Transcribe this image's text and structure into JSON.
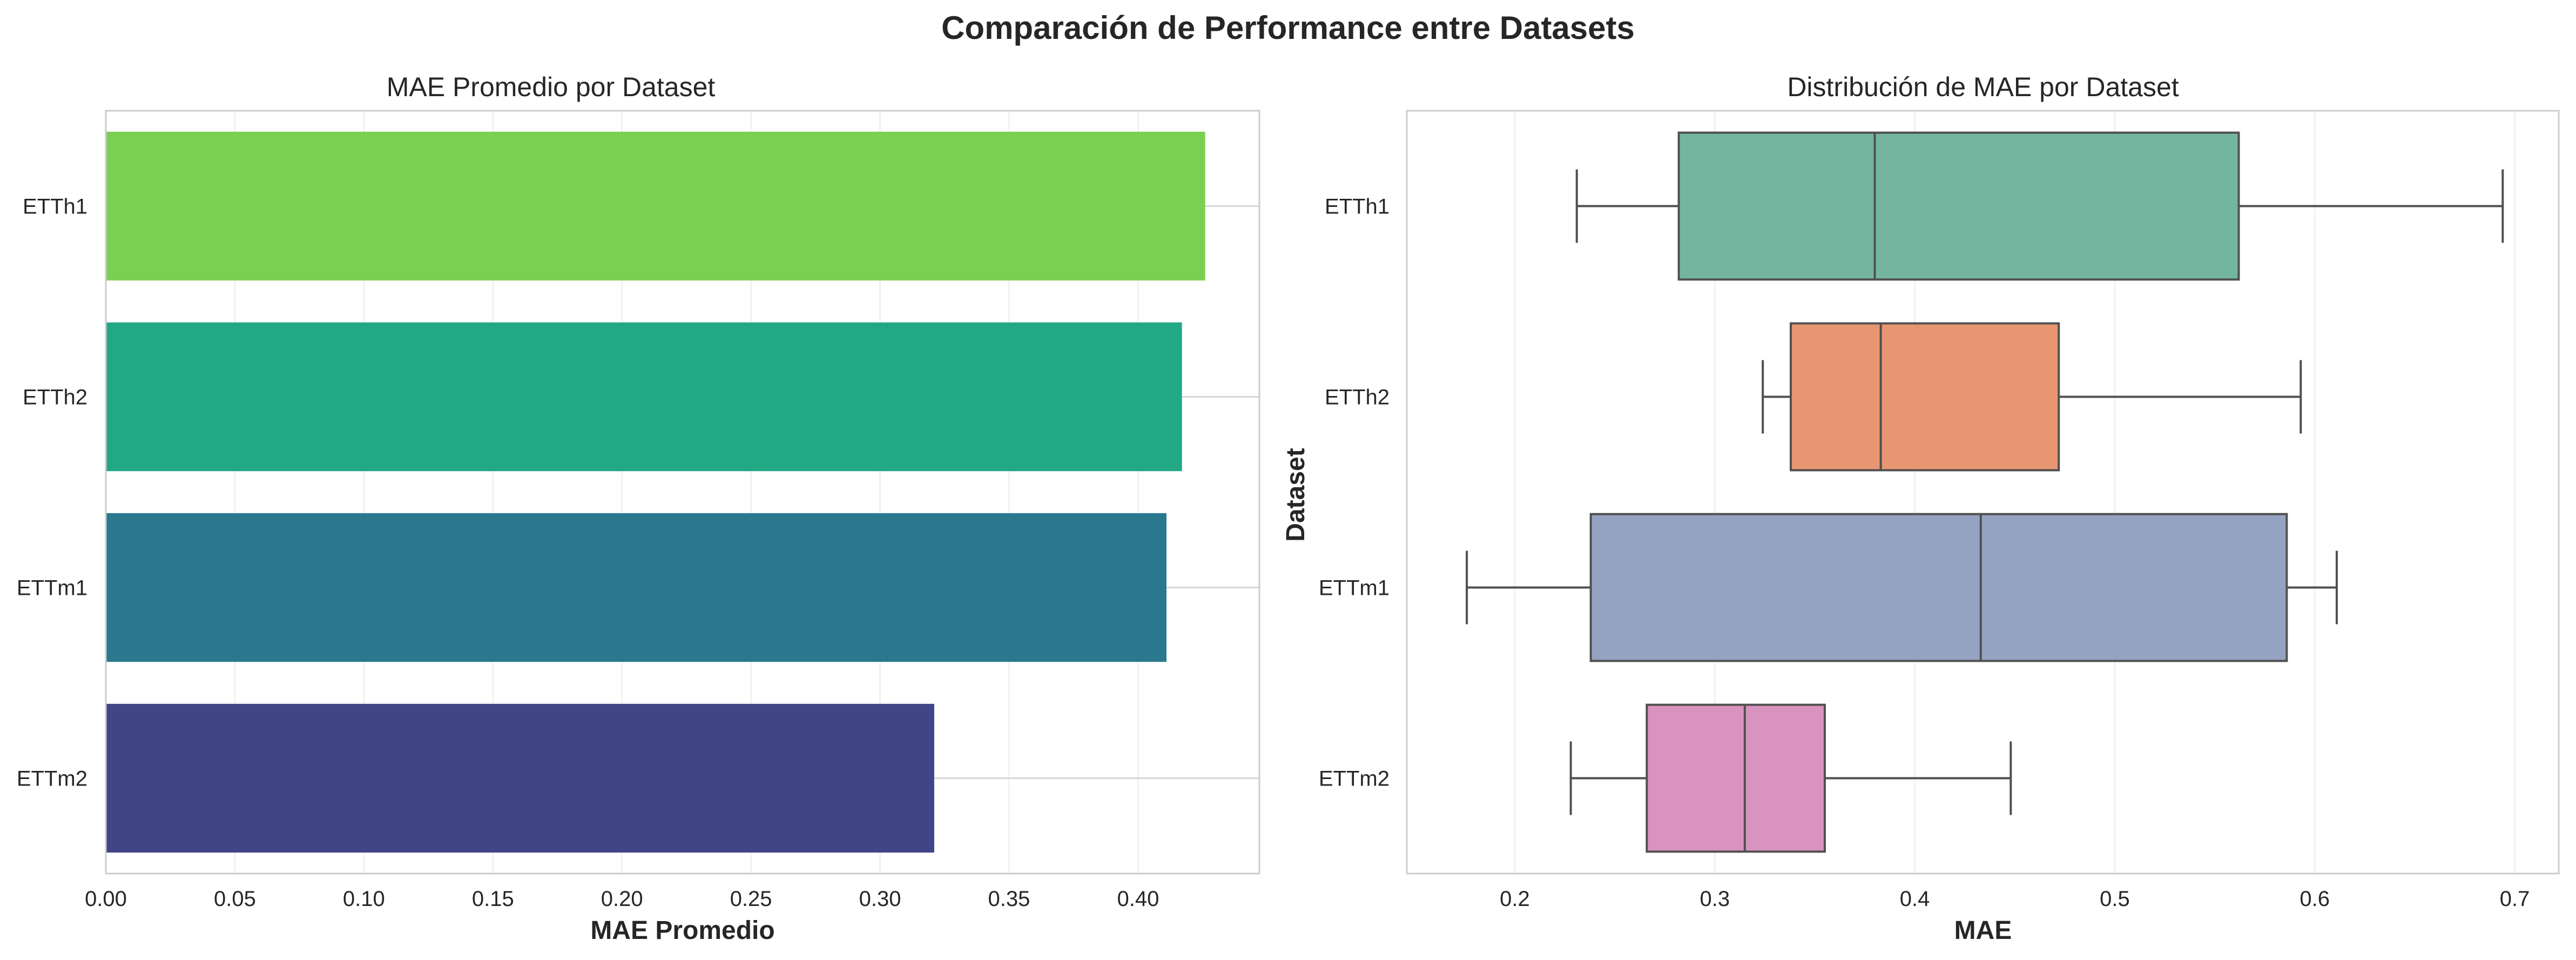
{
  "figure_title": "Comparación de Performance entre Datasets",
  "chart_data": [
    {
      "type": "bar",
      "orientation": "horizontal",
      "title": "MAE Promedio por Dataset",
      "xlabel": "MAE Promedio",
      "ylabel": "",
      "categories": [
        "ETTh1",
        "ETTh2",
        "ETTm1",
        "ETTm2"
      ],
      "values": [
        0.426,
        0.417,
        0.411,
        0.321
      ],
      "colors": [
        "#7ad151",
        "#22a884",
        "#2a788e",
        "#414487"
      ],
      "xlim": [
        0,
        0.447
      ],
      "xticks": [
        0.0,
        0.05,
        0.1,
        0.15,
        0.2,
        0.25,
        0.3,
        0.35,
        0.4
      ],
      "xtick_labels": [
        "0.00",
        "0.05",
        "0.10",
        "0.15",
        "0.20",
        "0.25",
        "0.30",
        "0.35",
        "0.40"
      ],
      "grid": true
    },
    {
      "type": "box",
      "orientation": "horizontal",
      "title": "Distribución de MAE por Dataset",
      "xlabel": "MAE",
      "ylabel": "Dataset",
      "categories": [
        "ETTh1",
        "ETTh2",
        "ETTm1",
        "ETTm2"
      ],
      "boxes": [
        {
          "whislo": 0.231,
          "q1": 0.282,
          "med": 0.38,
          "q3": 0.562,
          "whishi": 0.694
        },
        {
          "whislo": 0.324,
          "q1": 0.338,
          "med": 0.383,
          "q3": 0.472,
          "whishi": 0.593
        },
        {
          "whislo": 0.176,
          "q1": 0.238,
          "med": 0.433,
          "q3": 0.586,
          "whishi": 0.611
        },
        {
          "whislo": 0.228,
          "q1": 0.266,
          "med": 0.315,
          "q3": 0.355,
          "whishi": 0.448
        }
      ],
      "colors": [
        "#74b5a0",
        "#e89672",
        "#95a3c3",
        "#d893bf"
      ],
      "xlim": [
        0.146,
        0.722
      ],
      "xticks": [
        0.2,
        0.3,
        0.4,
        0.5,
        0.6,
        0.7
      ],
      "xtick_labels": [
        "0.2",
        "0.3",
        "0.4",
        "0.5",
        "0.6",
        "0.7"
      ],
      "grid": true
    }
  ]
}
